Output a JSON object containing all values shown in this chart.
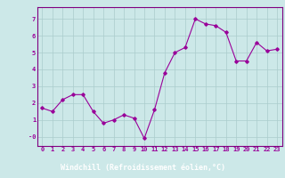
{
  "x": [
    0,
    1,
    2,
    3,
    4,
    5,
    6,
    7,
    8,
    9,
    10,
    11,
    12,
    13,
    14,
    15,
    16,
    17,
    18,
    19,
    20,
    21,
    22,
    23
  ],
  "y": [
    1.7,
    1.5,
    2.2,
    2.5,
    2.5,
    1.5,
    0.8,
    1.0,
    1.3,
    1.1,
    -0.1,
    1.6,
    3.8,
    5.0,
    5.3,
    7.0,
    6.7,
    6.6,
    6.2,
    4.5,
    4.5,
    5.6,
    5.1,
    5.2
  ],
  "line_color": "#990099",
  "marker": "D",
  "marker_size": 1.8,
  "bg_color": "#cce8e8",
  "grid_color": "#aacccc",
  "xlabel": "Windchill (Refroidissement éolien,°C)",
  "ylabel_ticks": [
    0,
    1,
    2,
    3,
    4,
    5,
    6,
    7
  ],
  "ytick_labels": [
    "-0",
    "1",
    "2",
    "3",
    "4",
    "5",
    "6",
    "7"
  ],
  "xlim": [
    -0.5,
    23.5
  ],
  "ylim": [
    -0.55,
    7.7
  ],
  "xtick_labels": [
    "0",
    "1",
    "2",
    "3",
    "4",
    "5",
    "6",
    "7",
    "8",
    "9",
    "10",
    "11",
    "12",
    "13",
    "14",
    "15",
    "16",
    "17",
    "18",
    "19",
    "20",
    "21",
    "22",
    "23"
  ],
  "tick_color": "#990099",
  "tick_fontsize": 5.0,
  "xlabel_fontsize": 6.0,
  "label_bgcolor": "#800080",
  "label_textcolor": "#ffffff",
  "spine_color": "#800080"
}
